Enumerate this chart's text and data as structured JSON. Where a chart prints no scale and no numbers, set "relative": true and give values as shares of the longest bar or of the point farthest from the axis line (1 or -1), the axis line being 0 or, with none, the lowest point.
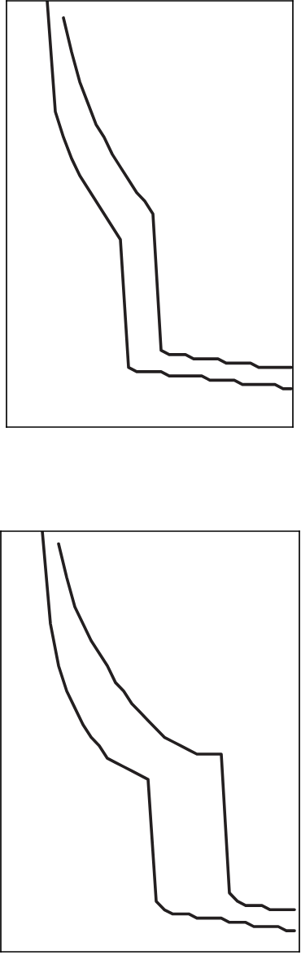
{
  "chart_data": [
    {
      "type": "line",
      "relative": true,
      "categories": [
        null,
        null,
        null,
        null,
        null,
        null,
        null,
        null,
        null,
        null,
        null,
        null,
        null,
        null,
        null,
        null,
        null,
        null,
        null,
        null,
        null,
        null,
        null,
        null,
        null,
        null,
        null,
        null,
        null,
        null,
        null
      ],
      "marker": "none",
      "line_style": "solid",
      "series": [
        {
          "color": "#231f20",
          "values": [
            1,
            0.74,
            0.68,
            0.63,
            0.59,
            0.56,
            0.53,
            0.5,
            0.47,
            0.44,
            0.14,
            0.13,
            0.13,
            0.13,
            0.13,
            0.12,
            0.12,
            0.12,
            0.12,
            0.12,
            0.11,
            0.11,
            0.11,
            0.11,
            0.1,
            0.1,
            0.1,
            0.1,
            0.1,
            0.09,
            0.09
          ]
        },
        {
          "color": "#231f20",
          "values": [
            null,
            null,
            0.96,
            0.88,
            0.81,
            0.76,
            0.71,
            0.68,
            0.64,
            0.61,
            0.58,
            0.55,
            0.53,
            0.5,
            0.18,
            0.17,
            0.17,
            0.17,
            0.16,
            0.16,
            0.16,
            0.16,
            0.15,
            0.15,
            0.15,
            0.15,
            0.14,
            0.14,
            0.14,
            0.14,
            0.14
          ]
        }
      ]
    },
    {
      "type": "line",
      "relative": true,
      "categories": [
        null,
        null,
        null,
        null,
        null,
        null,
        null,
        null,
        null,
        null,
        null,
        null,
        null,
        null,
        null,
        null,
        null,
        null,
        null,
        null,
        null,
        null,
        null,
        null,
        null,
        null,
        null,
        null,
        null,
        null,
        null,
        null
      ],
      "marker": "none",
      "line_style": "solid",
      "series": [
        {
          "color": "#231f20",
          "values": [
            1,
            0.78,
            0.68,
            0.62,
            0.58,
            0.54,
            0.51,
            0.49,
            0.46,
            0.45,
            0.44,
            0.43,
            0.42,
            0.41,
            0.12,
            0.1,
            0.09,
            0.09,
            0.09,
            0.08,
            0.08,
            0.08,
            0.08,
            0.07,
            0.07,
            0.07,
            0.06,
            0.06,
            0.06,
            0.06,
            0.05,
            0.05
          ]
        },
        {
          "color": "#231f20",
          "values": [
            null,
            null,
            0.97,
            0.89,
            0.82,
            0.78,
            0.74,
            0.71,
            0.68,
            0.64,
            0.62,
            0.59,
            0.57,
            0.55,
            0.53,
            0.51,
            0.5,
            0.49,
            0.48,
            0.47,
            0.47,
            0.47,
            0.47,
            0.14,
            0.12,
            0.11,
            0.11,
            0.11,
            0.1,
            0.1,
            0.1,
            0.1
          ]
        }
      ]
    }
  ]
}
